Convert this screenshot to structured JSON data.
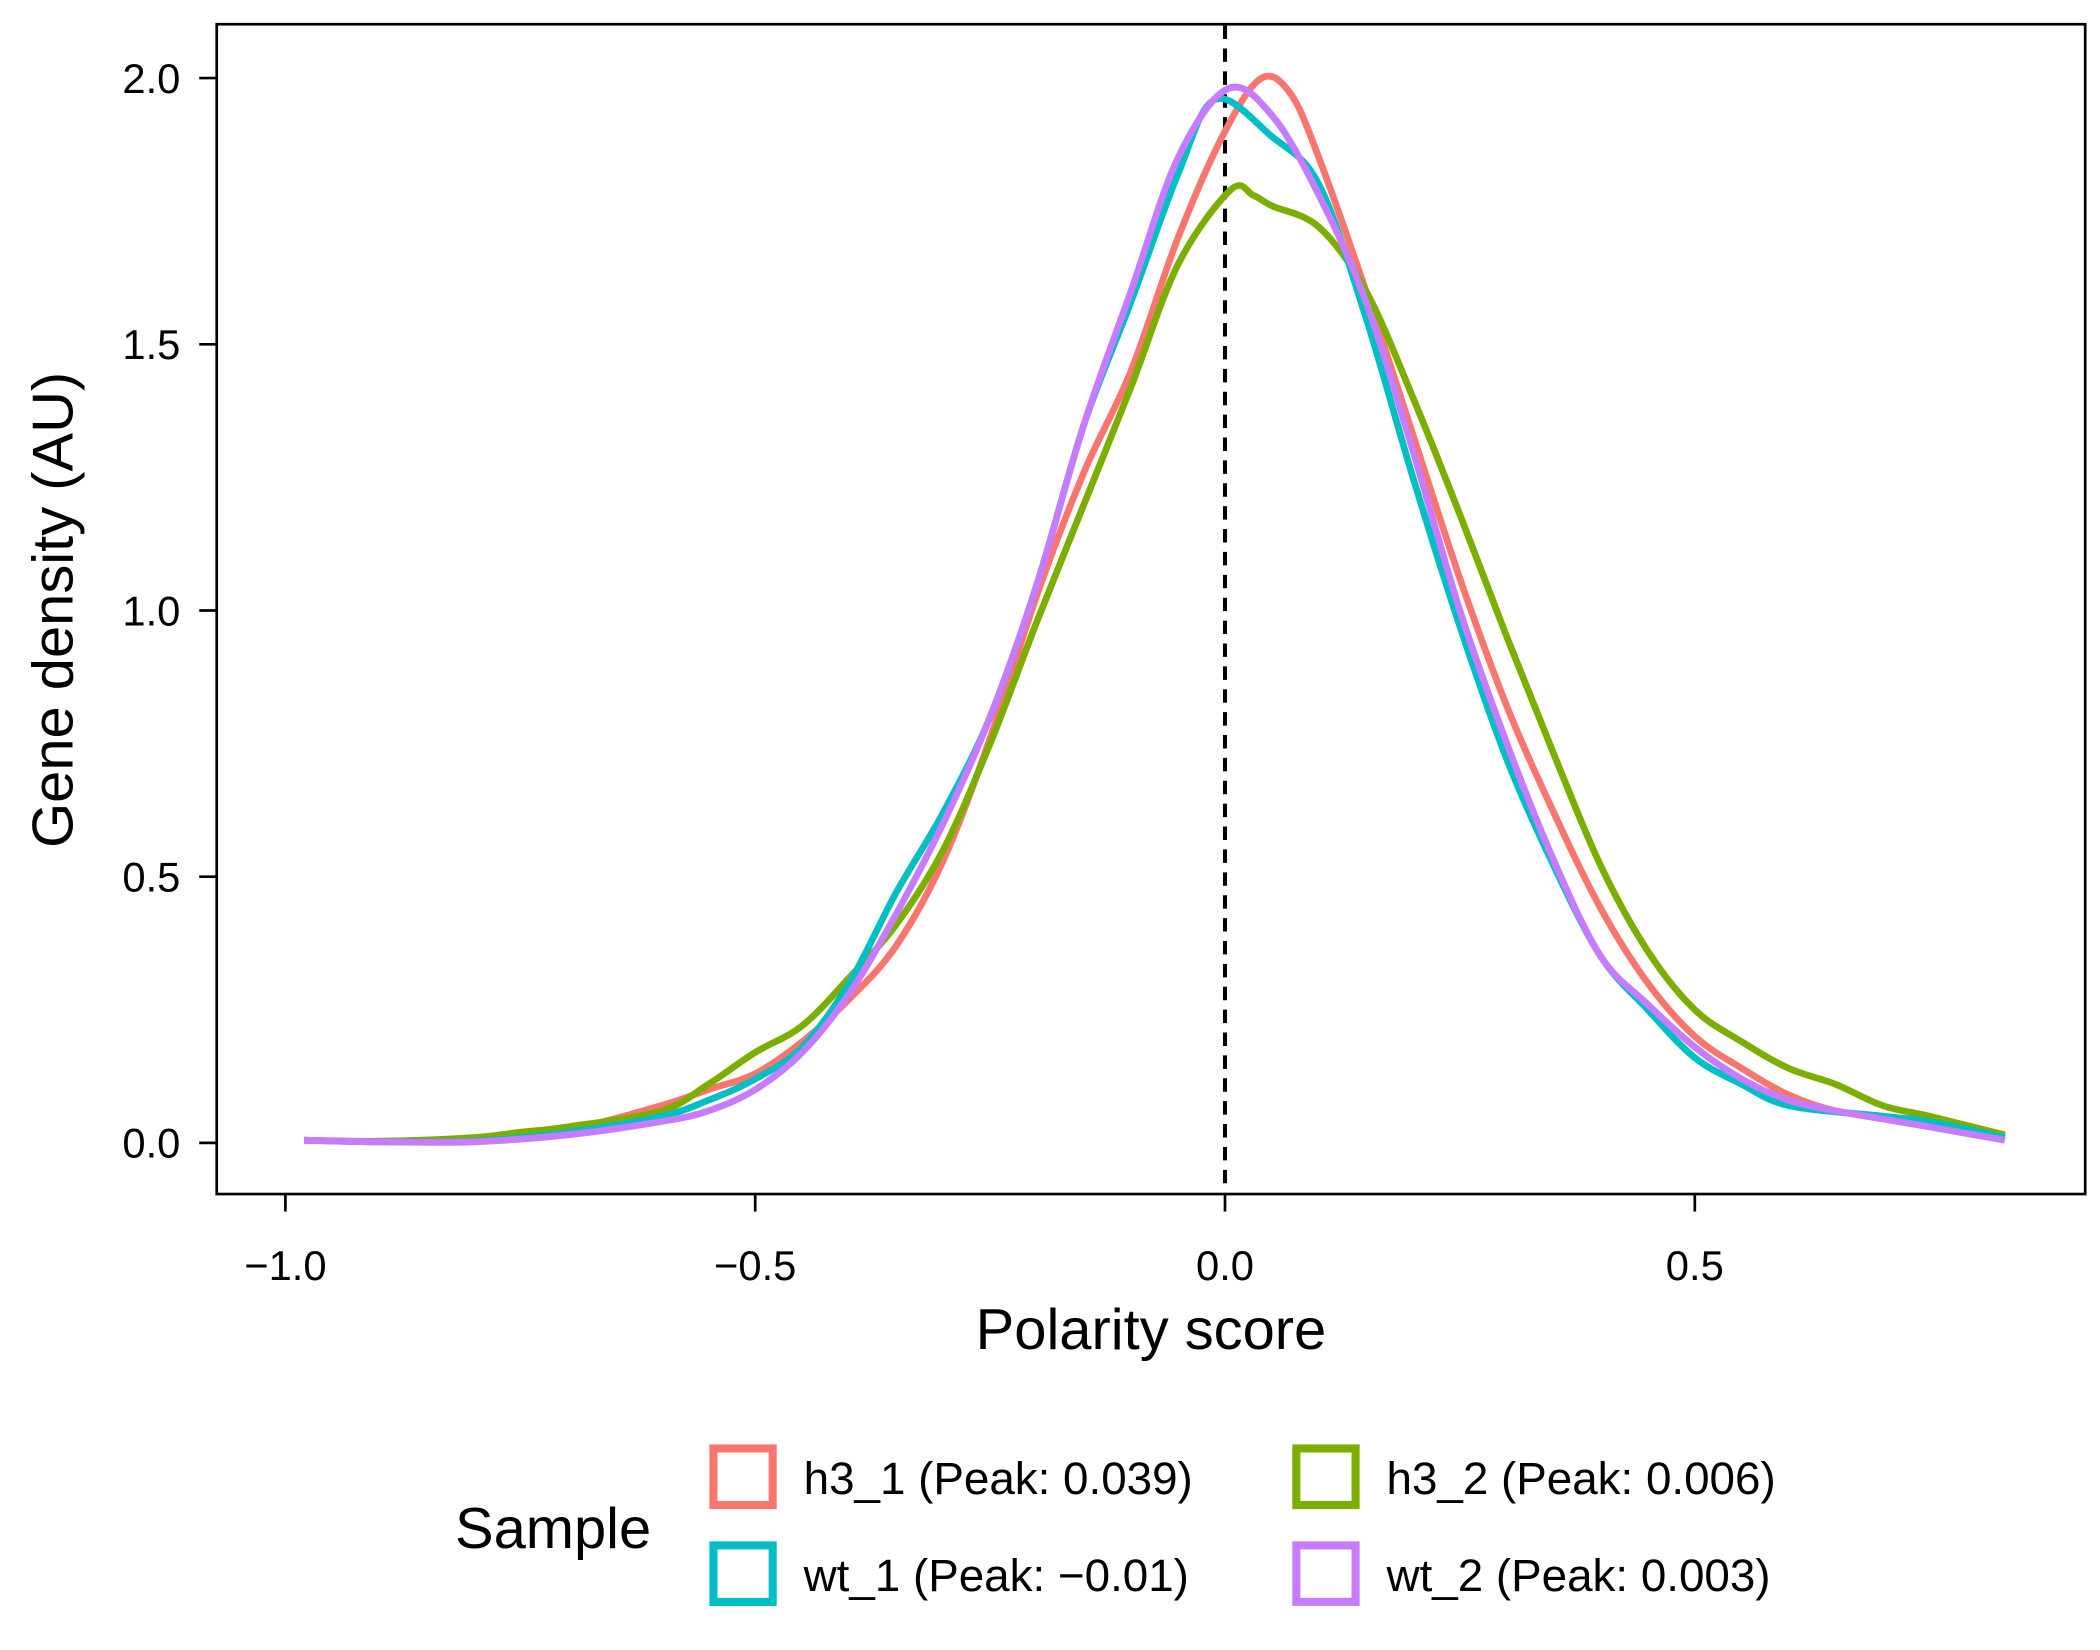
{
  "chart_data": {
    "type": "line",
    "title": "",
    "xlabel": "Polarity score",
    "ylabel": "Gene density (AU)",
    "xlim": [
      -1.08,
      0.92
    ],
    "ylim": [
      -0.1,
      2.1
    ],
    "xticks": [
      -1.0,
      -0.5,
      0.0,
      0.5
    ],
    "xtick_labels": [
      "−1.0",
      "−0.5",
      "0.0",
      "0.5"
    ],
    "yticks": [
      0.0,
      0.5,
      1.0,
      1.5,
      2.0
    ],
    "ytick_labels": [
      "0.0",
      "0.5",
      "1.0",
      "1.5",
      "2.0"
    ],
    "grid": false,
    "reference_line": {
      "x": 0.0,
      "style": "dashed",
      "color": "#000000"
    },
    "legend": {
      "title": "Sample",
      "placement": "bottom"
    },
    "series": [
      {
        "name": "h3_1 (Peak: 0.039)",
        "color": "#F8766D",
        "x": [
          -0.98,
          -0.9,
          -0.8,
          -0.7,
          -0.6,
          -0.55,
          -0.5,
          -0.45,
          -0.4,
          -0.35,
          -0.3,
          -0.25,
          -0.2,
          -0.15,
          -0.1,
          -0.05,
          0,
          0.039,
          0.07,
          0.1,
          0.15,
          0.2,
          0.25,
          0.3,
          0.35,
          0.4,
          0.45,
          0.5,
          0.55,
          0.6,
          0.65,
          0.7,
          0.75,
          0.83
        ],
        "y": [
          0.005,
          0.003,
          0.008,
          0.025,
          0.07,
          0.1,
          0.13,
          0.19,
          0.27,
          0.37,
          0.53,
          0.76,
          1.03,
          1.26,
          1.45,
          1.7,
          1.9,
          2.0,
          1.97,
          1.85,
          1.6,
          1.33,
          1.06,
          0.82,
          0.62,
          0.44,
          0.3,
          0.2,
          0.14,
          0.09,
          0.06,
          0.05,
          0.035,
          0.01
        ]
      },
      {
        "name": "h3_2 (Peak: 0.006)",
        "color": "#7CAE00",
        "x": [
          -0.98,
          -0.9,
          -0.8,
          -0.75,
          -0.7,
          -0.6,
          -0.55,
          -0.5,
          -0.45,
          -0.4,
          -0.35,
          -0.3,
          -0.25,
          -0.2,
          -0.15,
          -0.1,
          -0.05,
          0.006,
          0.03,
          0.05,
          0.1,
          0.15,
          0.2,
          0.25,
          0.3,
          0.35,
          0.4,
          0.45,
          0.5,
          0.55,
          0.6,
          0.65,
          0.7,
          0.75,
          0.83
        ],
        "y": [
          0.005,
          0.003,
          0.01,
          0.02,
          0.03,
          0.06,
          0.11,
          0.17,
          0.22,
          0.31,
          0.41,
          0.55,
          0.75,
          0.98,
          1.2,
          1.42,
          1.65,
          1.79,
          1.78,
          1.76,
          1.72,
          1.6,
          1.4,
          1.18,
          0.95,
          0.73,
          0.52,
          0.36,
          0.25,
          0.19,
          0.14,
          0.11,
          0.07,
          0.05,
          0.015
        ]
      },
      {
        "name": "wt_1 (Peak: −0.01)",
        "color": "#00BFC4",
        "x": [
          -0.98,
          -0.9,
          -0.8,
          -0.7,
          -0.6,
          -0.55,
          -0.5,
          -0.45,
          -0.4,
          -0.35,
          -0.3,
          -0.25,
          -0.2,
          -0.15,
          -0.1,
          -0.05,
          -0.01,
          0.05,
          0.1,
          0.15,
          0.2,
          0.25,
          0.3,
          0.35,
          0.4,
          0.45,
          0.5,
          0.55,
          0.6,
          0.7,
          0.75,
          0.83
        ],
        "y": [
          0.005,
          0.002,
          0.003,
          0.02,
          0.05,
          0.08,
          0.12,
          0.18,
          0.3,
          0.47,
          0.62,
          0.8,
          1.05,
          1.35,
          1.58,
          1.82,
          1.96,
          1.89,
          1.8,
          1.55,
          1.25,
          0.97,
          0.72,
          0.52,
          0.35,
          0.25,
          0.16,
          0.11,
          0.07,
          0.05,
          0.04,
          0.01
        ]
      },
      {
        "name": "wt_2 (Peak: 0.003)",
        "color": "#C77CFF",
        "x": [
          -0.98,
          -0.9,
          -0.8,
          -0.7,
          -0.6,
          -0.55,
          -0.5,
          -0.45,
          -0.4,
          -0.35,
          -0.3,
          -0.25,
          -0.2,
          -0.15,
          -0.1,
          -0.05,
          0.003,
          0.05,
          0.1,
          0.15,
          0.2,
          0.25,
          0.3,
          0.35,
          0.4,
          0.45,
          0.5,
          0.55,
          0.6,
          0.65,
          0.7,
          0.75,
          0.83
        ],
        "y": [
          0.005,
          0.002,
          0.002,
          0.015,
          0.04,
          0.06,
          0.1,
          0.17,
          0.28,
          0.43,
          0.6,
          0.8,
          1.05,
          1.35,
          1.6,
          1.85,
          1.98,
          1.93,
          1.78,
          1.58,
          1.3,
          1.0,
          0.75,
          0.53,
          0.35,
          0.26,
          0.18,
          0.12,
          0.08,
          0.06,
          0.045,
          0.03,
          0.005
        ]
      }
    ]
  }
}
